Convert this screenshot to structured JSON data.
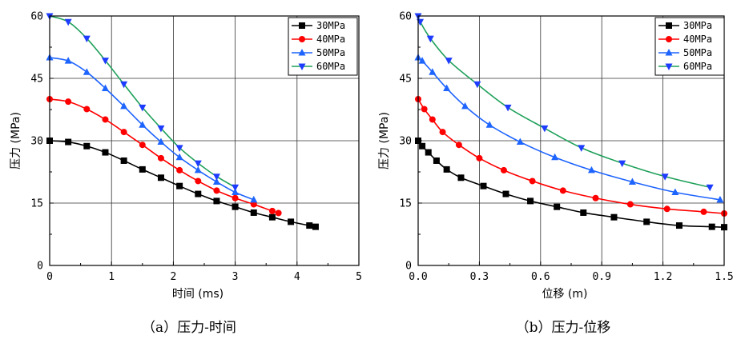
{
  "chart_data": [
    {
      "type": "line",
      "caption": "（a）压力-时间",
      "xlabel": "时间 (ms)",
      "ylabel": "压力 (MPa)",
      "xlim": [
        0,
        5
      ],
      "ylim": [
        0,
        60
      ],
      "xticks": [
        "0",
        "1",
        "2",
        "3",
        "4",
        "5"
      ],
      "yticks": [
        "0",
        "15",
        "30",
        "45",
        "60"
      ],
      "grid": true,
      "legend_position": "top-right",
      "series": [
        {
          "name": "30MPa",
          "color": "#000000",
          "marker": "square",
          "x": [
            0,
            0.3,
            0.6,
            0.9,
            1.2,
            1.5,
            1.8,
            2.1,
            2.4,
            2.7,
            3.0,
            3.3,
            3.6,
            3.9,
            4.2,
            4.3
          ],
          "y": [
            30,
            29.7,
            28.7,
            27.2,
            25.2,
            23.1,
            21.1,
            19.1,
            17.2,
            15.5,
            14.1,
            12.7,
            11.6,
            10.5,
            9.6,
            9.3
          ]
        },
        {
          "name": "40MPa",
          "color": "#ff0000",
          "marker": "circle",
          "x": [
            0,
            0.3,
            0.6,
            0.9,
            1.2,
            1.5,
            1.8,
            2.1,
            2.4,
            2.7,
            3.0,
            3.3,
            3.6,
            3.7
          ],
          "y": [
            40,
            39.4,
            37.6,
            35.1,
            32.1,
            29.0,
            25.8,
            22.9,
            20.3,
            18.0,
            16.2,
            14.7,
            13.1,
            12.6
          ]
        },
        {
          "name": "50MPa",
          "color": "#1e64ff",
          "marker": "triangle-up",
          "x": [
            0,
            0.3,
            0.6,
            0.9,
            1.2,
            1.5,
            1.8,
            2.1,
            2.4,
            2.7,
            3.0,
            3.3
          ],
          "y": [
            50,
            49.2,
            46.5,
            42.6,
            38.3,
            33.8,
            29.7,
            26.0,
            22.9,
            20.1,
            17.6,
            15.8
          ]
        },
        {
          "name": "60MPa",
          "color": "#1fa05a",
          "markerColor": "#1e3cff",
          "marker": "triangle-down",
          "x": [
            0,
            0.3,
            0.6,
            0.9,
            1.2,
            1.5,
            1.8,
            2.1,
            2.4,
            2.7,
            3.0
          ],
          "y": [
            60,
            58.6,
            54.6,
            49.3,
            43.6,
            38.0,
            33.0,
            28.3,
            24.6,
            21.4,
            18.8
          ]
        }
      ]
    },
    {
      "type": "line",
      "caption": "（b）压力-位移",
      "xlabel": "位移 (m)",
      "ylabel": "压力 (MPa)",
      "xlim": [
        0,
        1.5
      ],
      "ylim": [
        0,
        60
      ],
      "xticks": [
        "0.0",
        "0.3",
        "0.6",
        "0.9",
        "1.2",
        "1.5"
      ],
      "yticks": [
        "0",
        "15",
        "30",
        "45",
        "60"
      ],
      "grid": true,
      "legend_position": "top-right",
      "series": [
        {
          "name": "30MPa",
          "color": "#000000",
          "marker": "square",
          "x": [
            0.0,
            0.02,
            0.05,
            0.09,
            0.14,
            0.21,
            0.32,
            0.43,
            0.55,
            0.68,
            0.81,
            0.96,
            1.12,
            1.28,
            1.44,
            1.5
          ],
          "y": [
            30,
            28.7,
            27.2,
            25.2,
            23.1,
            21.1,
            19.1,
            17.2,
            15.5,
            14.1,
            12.7,
            11.6,
            10.5,
            9.6,
            9.3,
            9.2
          ]
        },
        {
          "name": "40MPa",
          "color": "#ff0000",
          "marker": "circle",
          "x": [
            0.0,
            0.03,
            0.07,
            0.12,
            0.2,
            0.3,
            0.42,
            0.56,
            0.71,
            0.87,
            1.04,
            1.22,
            1.4,
            1.5
          ],
          "y": [
            40,
            37.6,
            35.1,
            32.1,
            29.0,
            25.8,
            22.9,
            20.3,
            18.0,
            16.2,
            14.7,
            13.6,
            12.9,
            12.5
          ]
        },
        {
          "name": "50MPa",
          "color": "#1e64ff",
          "marker": "triangle-up",
          "x": [
            0.0,
            0.02,
            0.07,
            0.14,
            0.23,
            0.35,
            0.5,
            0.67,
            0.85,
            1.05,
            1.26,
            1.48
          ],
          "y": [
            50,
            49.2,
            46.5,
            42.6,
            38.3,
            33.8,
            29.7,
            26.0,
            22.9,
            20.1,
            17.6,
            15.8
          ]
        },
        {
          "name": "60MPa",
          "color": "#1fa05a",
          "markerColor": "#1e3cff",
          "marker": "triangle-down",
          "x": [
            0.0,
            0.01,
            0.06,
            0.15,
            0.29,
            0.44,
            0.62,
            0.8,
            1.0,
            1.21,
            1.43
          ],
          "y": [
            60,
            58.6,
            54.6,
            49.3,
            43.6,
            38.0,
            33.0,
            28.3,
            24.6,
            21.4,
            18.8
          ]
        }
      ]
    }
  ]
}
